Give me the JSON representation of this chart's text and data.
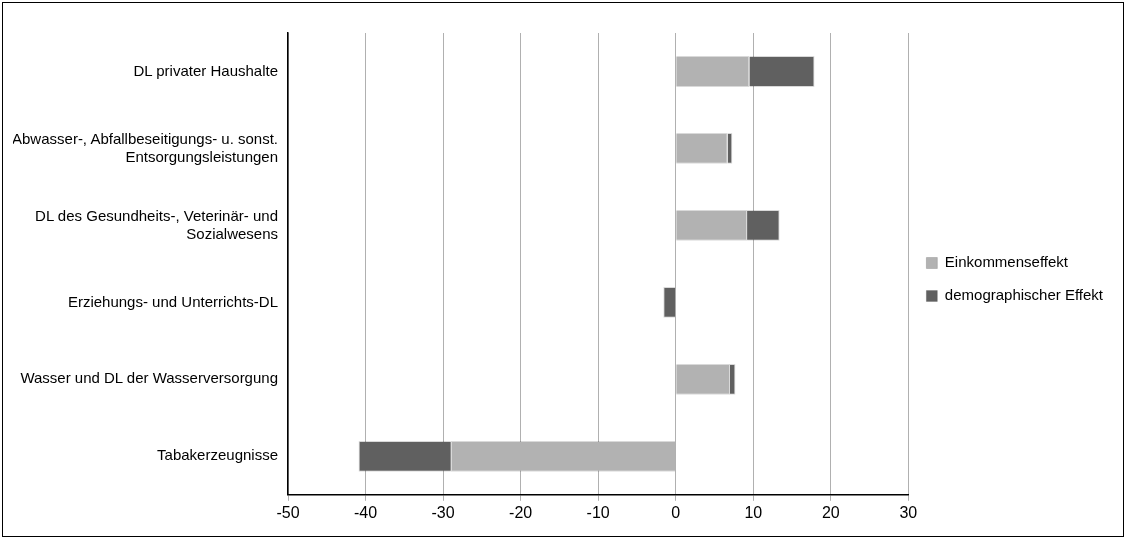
{
  "chart_data": {
    "type": "bar",
    "orientation": "horizontal",
    "stacked": true,
    "categories": [
      "DL privater Haushalte",
      "Abwasser-, Abfallbeseitigungs- u. sonst. Entsorgungsleistungen",
      "DL des Gesundheits-, Veterinär- und Sozialwesens",
      "Erziehungs- und Unterrichts-DL",
      "Wasser und DL der Wasserversorgung",
      "Tabakerzeugnisse"
    ],
    "series": [
      {
        "name": "Einkommenseffekt",
        "color": "#b2b2b2",
        "values": [
          9.5,
          6.7,
          9.2,
          0,
          7.0,
          -29.0
        ]
      },
      {
        "name": "demographischer Effekt",
        "color": "#606060",
        "values": [
          8.4,
          0.6,
          4.2,
          -1.6,
          0.7,
          -11.9
        ]
      }
    ],
    "xlim": [
      -50,
      30
    ],
    "xticks": [
      -50,
      -40,
      -30,
      -20,
      -10,
      0,
      10,
      20,
      30
    ],
    "grid": "x",
    "legend": "right"
  }
}
